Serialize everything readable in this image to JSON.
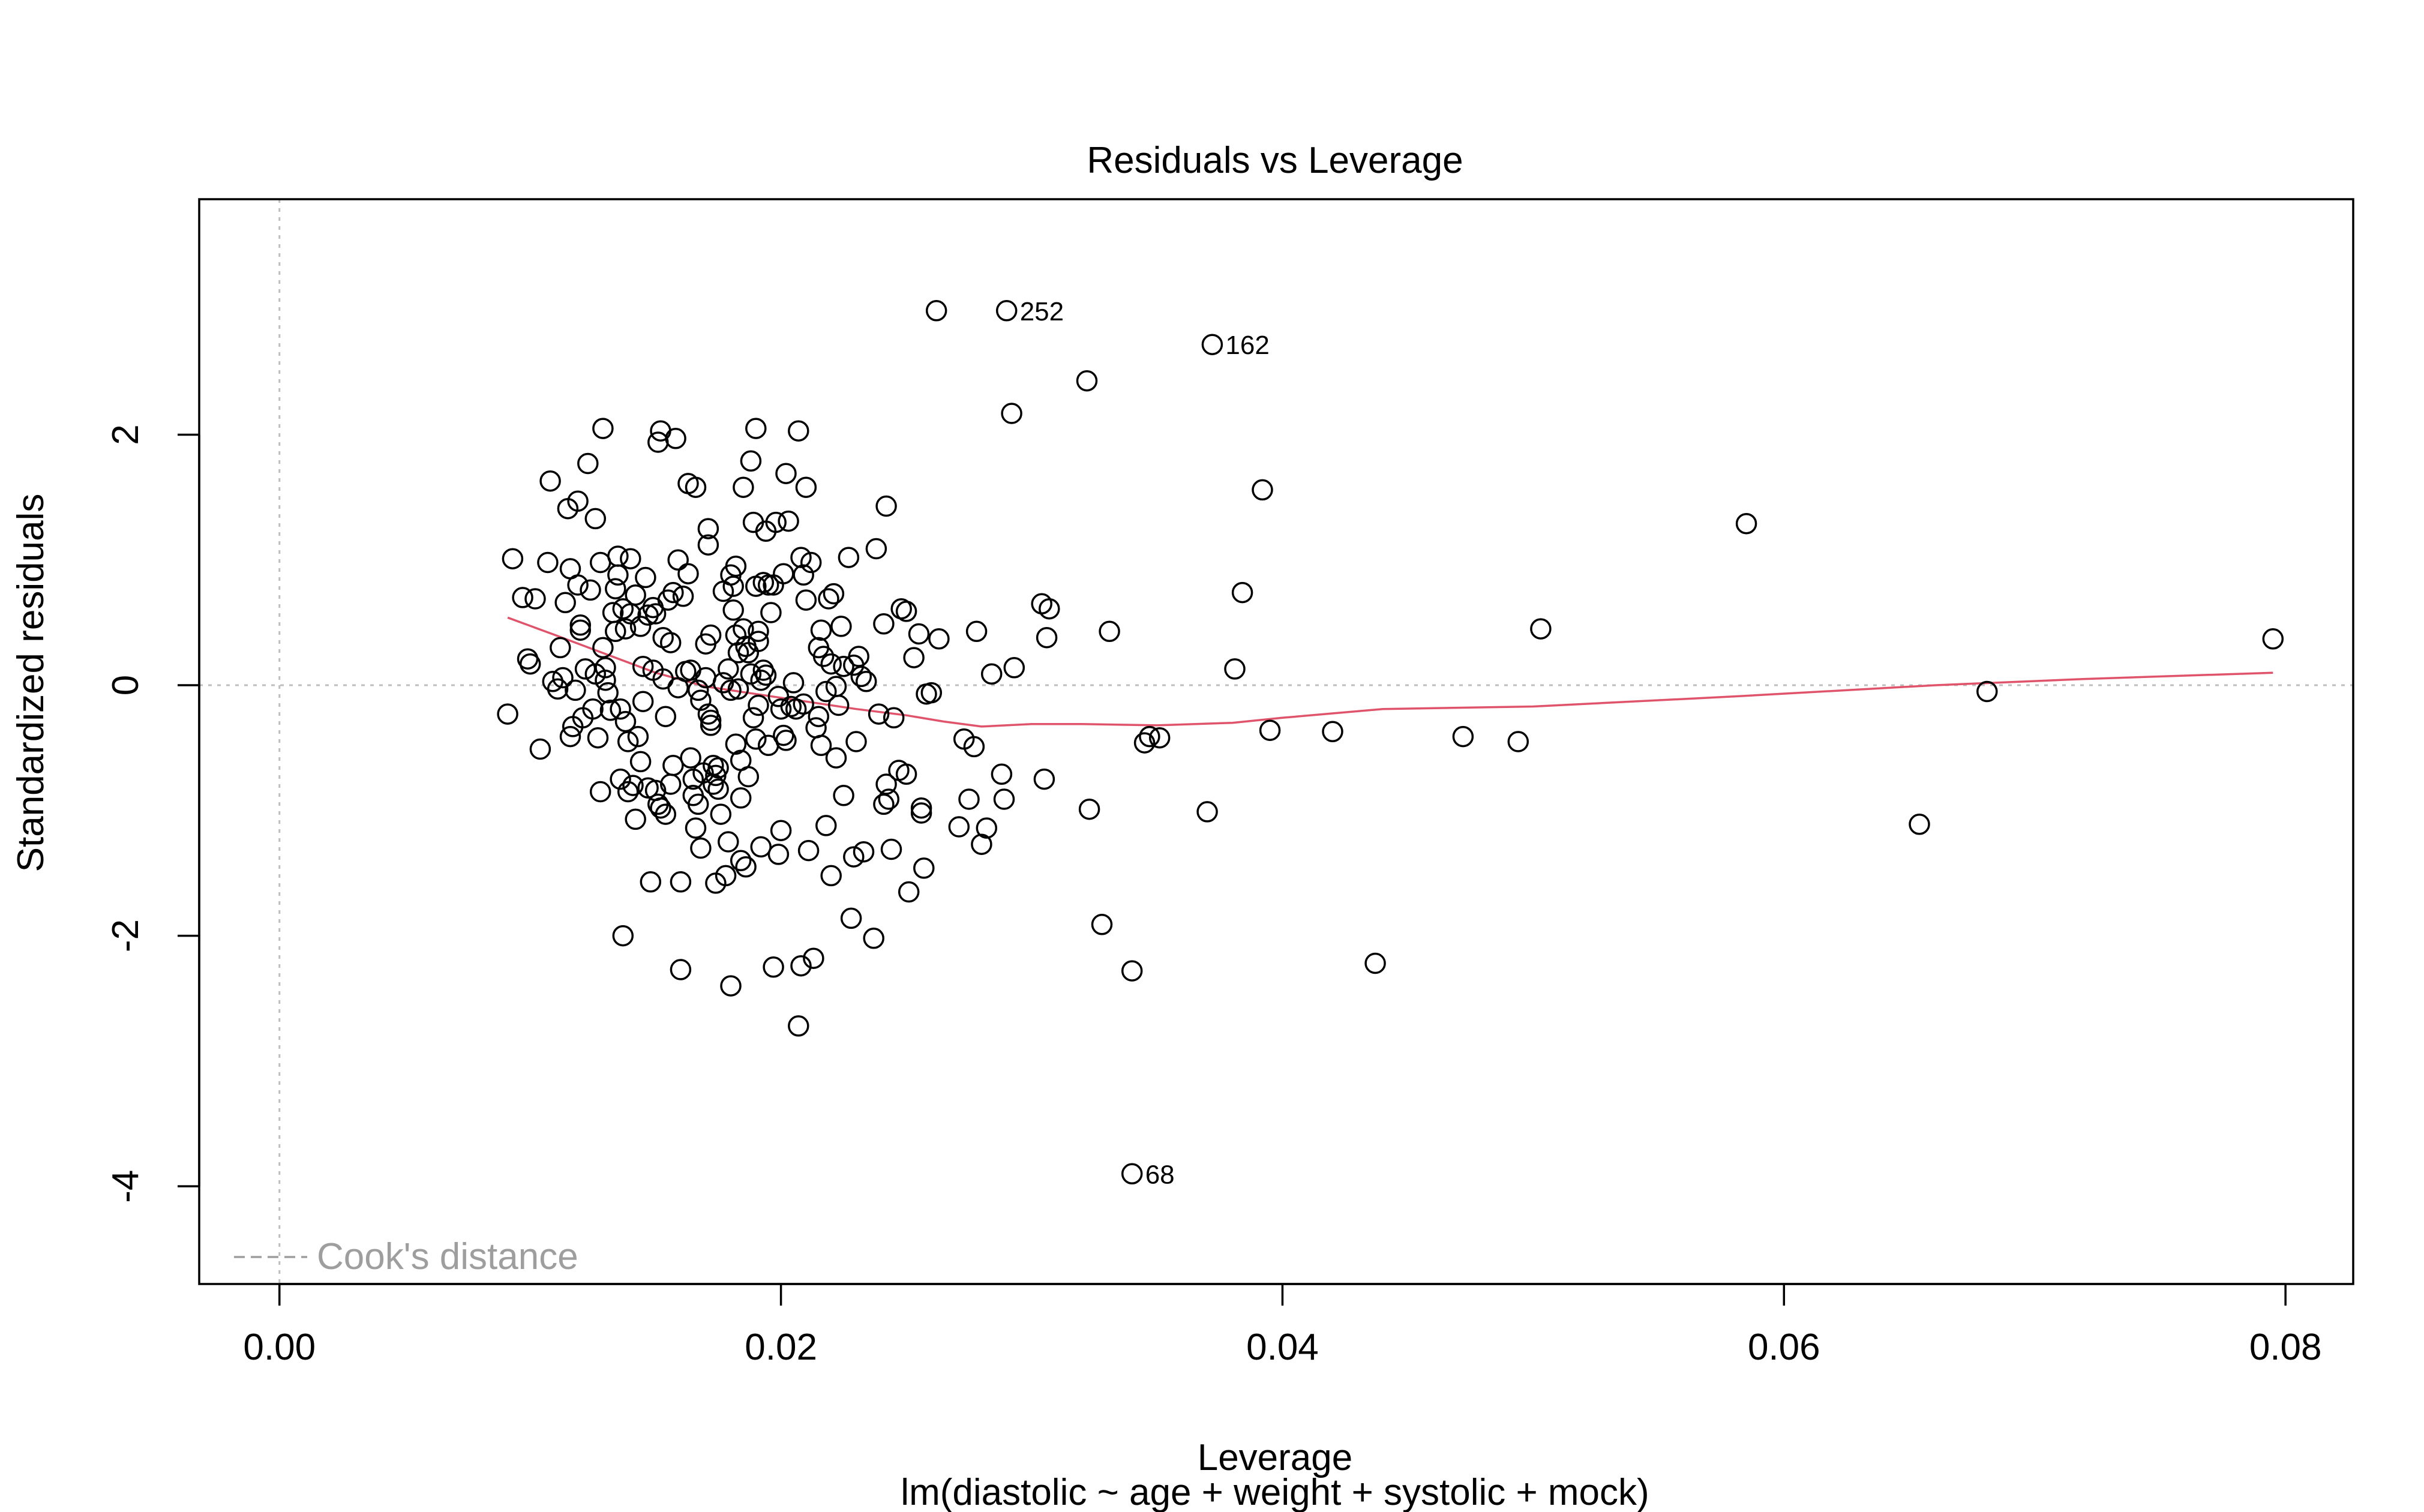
{
  "chart_data": {
    "type": "scatter",
    "title": "Residuals vs Leverage",
    "xlabel": "Leverage",
    "subtitle": "lm(diastolic ~ age + weight + systolic + mock)",
    "ylabel": "Standardized residuals",
    "xlim": [
      -0.0032,
      0.0827
    ],
    "ylim": [
      -4.78,
      3.88
    ],
    "x_ticks": [
      0.0,
      0.02,
      0.04,
      0.06,
      0.08
    ],
    "x_tick_labels": [
      "0.00",
      "0.02",
      "0.04",
      "0.06",
      "0.08"
    ],
    "y_ticks": [
      -4,
      -2,
      0,
      2
    ],
    "y_tick_labels": [
      "-4",
      "-2",
      "0",
      "2"
    ],
    "grid": false,
    "reference_lines": {
      "horizontal_y": 0,
      "vertical_x": 0
    },
    "legend": {
      "position": "bottom-left",
      "entries": [
        {
          "label": "Cook's distance",
          "style": "dashed",
          "color": "#9E9E9E"
        }
      ]
    },
    "colors": {
      "points": "#000000",
      "smoother": "#DF536B",
      "reference": "#BEBEBE",
      "legend_text": "#9E9E9E"
    },
    "labeled_points": [
      {
        "label": "252",
        "x": 0.029,
        "y": 2.99
      },
      {
        "label": "162",
        "x": 0.0372,
        "y": 2.72
      },
      {
        "label": "68",
        "x": 0.034,
        "y": -3.9
      }
    ],
    "smoother": {
      "x": [
        0.0091,
        0.011,
        0.013,
        0.015,
        0.017,
        0.019,
        0.021,
        0.023,
        0.025,
        0.0265,
        0.028,
        0.03,
        0.032,
        0.035,
        0.038,
        0.04,
        0.044,
        0.05,
        0.058,
        0.066,
        0.072,
        0.0795
      ],
      "y": [
        0.54,
        0.4,
        0.25,
        0.1,
        -0.01,
        -0.07,
        -0.13,
        -0.19,
        -0.24,
        -0.29,
        -0.33,
        -0.31,
        -0.31,
        -0.32,
        -0.3,
        -0.26,
        -0.19,
        -0.17,
        -0.09,
        0.0,
        0.05,
        0.1
      ]
    },
    "points": [
      [
        0.0091,
        -0.23
      ],
      [
        0.0093,
        1.01
      ],
      [
        0.0097,
        0.7
      ],
      [
        0.0099,
        0.21
      ],
      [
        0.01,
        0.17
      ],
      [
        0.0102,
        0.69
      ],
      [
        0.0104,
        -0.51
      ],
      [
        0.0107,
        0.98
      ],
      [
        0.0108,
        1.63
      ],
      [
        0.0109,
        0.03
      ],
      [
        0.0111,
        -0.03
      ],
      [
        0.0112,
        0.3
      ],
      [
        0.0113,
        0.06
      ],
      [
        0.0114,
        0.66
      ],
      [
        0.0115,
        1.41
      ],
      [
        0.0116,
        0.93
      ],
      [
        0.0116,
        -0.41
      ],
      [
        0.0117,
        -0.33
      ],
      [
        0.0118,
        -0.04
      ],
      [
        0.0119,
        1.47
      ],
      [
        0.0119,
        0.8
      ],
      [
        0.012,
        0.48
      ],
      [
        0.012,
        0.44
      ],
      [
        0.0121,
        -0.26
      ],
      [
        0.0122,
        0.13
      ],
      [
        0.0123,
        1.77
      ],
      [
        0.0124,
        0.76
      ],
      [
        0.0125,
        -0.19
      ],
      [
        0.0126,
        0.09
      ],
      [
        0.0126,
        1.33
      ],
      [
        0.0127,
        -0.42
      ],
      [
        0.0128,
        0.98
      ],
      [
        0.0128,
        -0.85
      ],
      [
        0.0129,
        2.05
      ],
      [
        0.0129,
        0.3
      ],
      [
        0.013,
        0.14
      ],
      [
        0.013,
        0.04
      ],
      [
        0.0131,
        -0.06
      ],
      [
        0.0132,
        -0.2
      ],
      [
        0.0133,
        0.58
      ],
      [
        0.0134,
        0.43
      ],
      [
        0.0134,
        0.77
      ],
      [
        0.0135,
        1.03
      ],
      [
        0.0135,
        0.88
      ],
      [
        0.0136,
        -0.19
      ],
      [
        0.0136,
        -0.75
      ],
      [
        0.0137,
        -2.0
      ],
      [
        0.0137,
        0.61
      ],
      [
        0.0138,
        0.45
      ],
      [
        0.0138,
        -0.29
      ],
      [
        0.0139,
        -0.85
      ],
      [
        0.0139,
        -0.45
      ],
      [
        0.014,
        1.01
      ],
      [
        0.014,
        0.57
      ],
      [
        0.0141,
        -0.8
      ],
      [
        0.0142,
        -1.07
      ],
      [
        0.0142,
        0.72
      ],
      [
        0.0143,
        -0.41
      ],
      [
        0.0144,
        -0.61
      ],
      [
        0.0144,
        0.47
      ],
      [
        0.0145,
        0.15
      ],
      [
        0.0145,
        -0.13
      ],
      [
        0.0146,
        0.86
      ],
      [
        0.0147,
        0.56
      ],
      [
        0.0147,
        -0.82
      ],
      [
        0.0148,
        -1.57
      ],
      [
        0.0149,
        0.12
      ],
      [
        0.0149,
        0.62
      ],
      [
        0.015,
        0.57
      ],
      [
        0.015,
        -0.84
      ],
      [
        0.0151,
        1.94
      ],
      [
        0.0151,
        -0.95
      ],
      [
        0.0152,
        2.03
      ],
      [
        0.0152,
        -0.98
      ],
      [
        0.0153,
        0.38
      ],
      [
        0.0153,
        0.05
      ],
      [
        0.0154,
        -1.03
      ],
      [
        0.0154,
        -0.25
      ],
      [
        0.0155,
        0.68
      ],
      [
        0.0156,
        -0.79
      ],
      [
        0.0156,
        0.34
      ],
      [
        0.0157,
        0.74
      ],
      [
        0.0157,
        -0.64
      ],
      [
        0.0158,
        1.97
      ],
      [
        0.0159,
        1.0
      ],
      [
        0.0159,
        -0.02
      ],
      [
        0.016,
        -1.57
      ],
      [
        0.016,
        -2.27
      ],
      [
        0.0161,
        0.71
      ],
      [
        0.0162,
        0.11
      ],
      [
        0.0163,
        1.61
      ],
      [
        0.0163,
        0.89
      ],
      [
        0.0164,
        0.12
      ],
      [
        0.0164,
        -0.58
      ],
      [
        0.0165,
        -0.75
      ],
      [
        0.0165,
        -0.88
      ],
      [
        0.0166,
        -1.14
      ],
      [
        0.0166,
        1.58
      ],
      [
        0.0167,
        -0.95
      ],
      [
        0.0167,
        -0.04
      ],
      [
        0.0168,
        -1.3
      ],
      [
        0.0168,
        -0.12
      ],
      [
        0.0169,
        -0.7
      ],
      [
        0.017,
        0.33
      ],
      [
        0.017,
        0.06
      ],
      [
        0.0171,
        1.25
      ],
      [
        0.0171,
        1.12
      ],
      [
        0.0171,
        -0.23
      ],
      [
        0.0172,
        -0.28
      ],
      [
        0.0172,
        0.4
      ],
      [
        0.0172,
        -0.32
      ],
      [
        0.0173,
        -0.64
      ],
      [
        0.0173,
        -0.79
      ],
      [
        0.0174,
        -0.72
      ],
      [
        0.0174,
        -1.58
      ],
      [
        0.0175,
        -0.83
      ],
      [
        0.0175,
        -0.66
      ],
      [
        0.0176,
        -1.03
      ],
      [
        0.0177,
        0.75
      ],
      [
        0.0177,
        0.02
      ],
      [
        0.0178,
        -1.52
      ],
      [
        0.0179,
        -1.25
      ],
      [
        0.0179,
        0.13
      ],
      [
        0.018,
        -2.4
      ],
      [
        0.018,
        0.88
      ],
      [
        0.018,
        -0.04
      ],
      [
        0.0181,
        0.79
      ],
      [
        0.0181,
        0.6
      ],
      [
        0.0182,
        0.95
      ],
      [
        0.0182,
        -0.47
      ],
      [
        0.0182,
        0.4
      ],
      [
        0.0183,
        0.26
      ],
      [
        0.0183,
        -0.03
      ],
      [
        0.0184,
        -0.6
      ],
      [
        0.0184,
        -0.9
      ],
      [
        0.0184,
        -1.4
      ],
      [
        0.0185,
        1.58
      ],
      [
        0.0185,
        0.45
      ],
      [
        0.0186,
        -1.45
      ],
      [
        0.0186,
        0.31
      ],
      [
        0.0187,
        0.26
      ],
      [
        0.0187,
        -0.73
      ],
      [
        0.0188,
        1.79
      ],
      [
        0.0188,
        0.09
      ],
      [
        0.0189,
        1.3
      ],
      [
        0.0189,
        -0.26
      ],
      [
        0.019,
        2.05
      ],
      [
        0.019,
        -0.43
      ],
      [
        0.019,
        0.79
      ],
      [
        0.0191,
        -0.16
      ],
      [
        0.0191,
        0.43
      ],
      [
        0.0191,
        0.35
      ],
      [
        0.0192,
        -1.29
      ],
      [
        0.0192,
        0.04
      ],
      [
        0.0193,
        0.82
      ],
      [
        0.0193,
        0.12
      ],
      [
        0.0194,
        1.23
      ],
      [
        0.0194,
        0.08
      ],
      [
        0.0195,
        0.8
      ],
      [
        0.0195,
        -0.48
      ],
      [
        0.0196,
        0.58
      ],
      [
        0.0197,
        -2.25
      ],
      [
        0.0197,
        0.8
      ],
      [
        0.0198,
        1.3
      ],
      [
        0.0199,
        -0.09
      ],
      [
        0.0199,
        -1.35
      ],
      [
        0.02,
        -0.19
      ],
      [
        0.02,
        -1.16
      ],
      [
        0.0201,
        0.89
      ],
      [
        0.0201,
        -0.4
      ],
      [
        0.0202,
        1.69
      ],
      [
        0.0202,
        -0.44
      ],
      [
        0.0203,
        1.31
      ],
      [
        0.0204,
        -0.17
      ],
      [
        0.0205,
        0.02
      ],
      [
        0.0206,
        -0.19
      ],
      [
        0.0207,
        -2.72
      ],
      [
        0.0207,
        2.03
      ],
      [
        0.0208,
        1.02
      ],
      [
        0.0208,
        -2.24
      ],
      [
        0.0209,
        0.88
      ],
      [
        0.0209,
        -0.15
      ],
      [
        0.021,
        1.58
      ],
      [
        0.021,
        0.68
      ],
      [
        0.0211,
        -1.32
      ],
      [
        0.0212,
        0.98
      ],
      [
        0.0213,
        -2.18
      ],
      [
        0.0214,
        -0.34
      ],
      [
        0.0215,
        0.3
      ],
      [
        0.0215,
        -0.25
      ],
      [
        0.0216,
        0.44
      ],
      [
        0.0216,
        -0.48
      ],
      [
        0.0217,
        0.23
      ],
      [
        0.0218,
        -0.05
      ],
      [
        0.0218,
        -1.12
      ],
      [
        0.0219,
        0.69
      ],
      [
        0.022,
        0.17
      ],
      [
        0.022,
        -1.52
      ],
      [
        0.0221,
        0.73
      ],
      [
        0.0222,
        -0.58
      ],
      [
        0.0222,
        -0.01
      ],
      [
        0.0223,
        -0.16
      ],
      [
        0.0224,
        0.47
      ],
      [
        0.0225,
        0.15
      ],
      [
        0.0225,
        -0.88
      ],
      [
        0.0227,
        1.02
      ],
      [
        0.0228,
        -1.86
      ],
      [
        0.0229,
        0.16
      ],
      [
        0.0229,
        -1.37
      ],
      [
        0.023,
        -0.45
      ],
      [
        0.0231,
        0.23
      ],
      [
        0.0232,
        0.07
      ],
      [
        0.0233,
        -1.33
      ],
      [
        0.0234,
        0.03
      ],
      [
        0.0237,
        -2.02
      ],
      [
        0.0238,
        1.09
      ],
      [
        0.0239,
        -0.23
      ],
      [
        0.0241,
        -0.95
      ],
      [
        0.0241,
        0.49
      ],
      [
        0.0242,
        1.43
      ],
      [
        0.0242,
        -0.79
      ],
      [
        0.0243,
        -0.91
      ],
      [
        0.0244,
        -1.31
      ],
      [
        0.0245,
        -0.26
      ],
      [
        0.0247,
        -0.68
      ],
      [
        0.0248,
        0.61
      ],
      [
        0.025,
        0.59
      ],
      [
        0.025,
        -0.71
      ],
      [
        0.0251,
        -1.65
      ],
      [
        0.0253,
        0.22
      ],
      [
        0.0255,
        0.41
      ],
      [
        0.0256,
        -1.02
      ],
      [
        0.0256,
        -0.98
      ],
      [
        0.0257,
        -1.46
      ],
      [
        0.0258,
        -0.07
      ],
      [
        0.026,
        -0.06
      ],
      [
        0.0262,
        2.99
      ],
      [
        0.0263,
        0.37
      ],
      [
        0.0271,
        -1.13
      ],
      [
        0.0273,
        -0.43
      ],
      [
        0.0275,
        -0.91
      ],
      [
        0.0277,
        -0.49
      ],
      [
        0.0278,
        0.43
      ],
      [
        0.028,
        -1.27
      ],
      [
        0.0282,
        -1.14
      ],
      [
        0.0284,
        0.09
      ],
      [
        0.0288,
        -0.71
      ],
      [
        0.0289,
        -0.91
      ],
      [
        0.029,
        2.99
      ],
      [
        0.0292,
        2.17
      ],
      [
        0.0293,
        0.14
      ],
      [
        0.0304,
        0.65
      ],
      [
        0.0305,
        -0.75
      ],
      [
        0.0306,
        0.38
      ],
      [
        0.0307,
        0.61
      ],
      [
        0.0322,
        2.43
      ],
      [
        0.0323,
        -0.99
      ],
      [
        0.0328,
        -1.91
      ],
      [
        0.0331,
        0.43
      ],
      [
        0.034,
        -2.28
      ],
      [
        0.034,
        -3.9
      ],
      [
        0.0345,
        -0.46
      ],
      [
        0.0347,
        -0.41
      ],
      [
        0.0351,
        -0.42
      ],
      [
        0.037,
        -1.01
      ],
      [
        0.0372,
        2.72
      ],
      [
        0.0381,
        0.13
      ],
      [
        0.0384,
        0.74
      ],
      [
        0.0392,
        1.56
      ],
      [
        0.0395,
        -0.36
      ],
      [
        0.042,
        -0.37
      ],
      [
        0.0437,
        -2.22
      ],
      [
        0.0472,
        -0.41
      ],
      [
        0.0494,
        -0.45
      ],
      [
        0.0503,
        0.45
      ],
      [
        0.0585,
        1.29
      ],
      [
        0.0654,
        -1.11
      ],
      [
        0.0681,
        -0.05
      ],
      [
        0.0795,
        0.37
      ]
    ]
  }
}
